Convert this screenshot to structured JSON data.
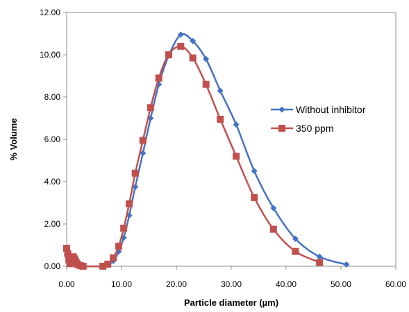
{
  "chart_data": {
    "type": "line",
    "title": "",
    "xlabel": "Particle diameter (µm)",
    "ylabel": "% Volume",
    "xlim": [
      0,
      60
    ],
    "ylim": [
      0,
      12
    ],
    "xticks": [
      "0.00",
      "10.00",
      "20.00",
      "30.00",
      "40.00",
      "50.00",
      "60.00"
    ],
    "yticks": [
      "0.00",
      "2.00",
      "4.00",
      "6.00",
      "8.00",
      "10.00",
      "12.00"
    ],
    "grid": false,
    "legend_position": "right",
    "series": [
      {
        "name": "Without inhibitor",
        "color": "#4472C4",
        "marker": "diamond",
        "x": [
          0.0,
          0.2,
          0.4,
          0.6,
          0.8,
          1.0,
          1.2,
          1.4,
          1.6,
          1.8,
          2.0,
          2.5,
          3.0,
          6.6,
          7.5,
          8.5,
          9.5,
          10.4,
          11.4,
          12.5,
          13.9,
          15.3,
          16.8,
          18.6,
          20.8,
          23.0,
          25.4,
          28.0,
          30.9,
          34.2,
          37.7,
          41.7,
          46.1,
          51.0
        ],
        "y": [
          0.55,
          0.4,
          0.2,
          0.1,
          0.15,
          0.35,
          0.4,
          0.3,
          0.2,
          0.1,
          0.05,
          0.02,
          0.0,
          0.0,
          0.05,
          0.25,
          0.7,
          1.35,
          2.4,
          3.75,
          5.35,
          7.0,
          8.6,
          9.95,
          10.95,
          10.65,
          9.8,
          8.3,
          6.7,
          4.5,
          2.75,
          1.3,
          0.45,
          0.08
        ]
      },
      {
        "name": "350 ppm",
        "color": "#C0504D",
        "marker": "square",
        "x": [
          0.0,
          0.2,
          0.4,
          0.6,
          0.8,
          1.0,
          1.2,
          1.4,
          1.6,
          1.8,
          2.0,
          2.5,
          3.0,
          6.6,
          7.5,
          8.5,
          9.5,
          10.4,
          11.4,
          12.5,
          13.9,
          15.3,
          16.8,
          18.6,
          20.8,
          23.0,
          25.4,
          28.0,
          30.9,
          34.2,
          37.7,
          41.7,
          46.1
        ],
        "y": [
          0.85,
          0.6,
          0.3,
          0.12,
          0.2,
          0.4,
          0.45,
          0.35,
          0.25,
          0.15,
          0.08,
          0.03,
          0.0,
          0.0,
          0.1,
          0.4,
          0.95,
          1.8,
          2.95,
          4.4,
          5.95,
          7.5,
          8.9,
          10.0,
          10.4,
          9.85,
          8.6,
          6.95,
          5.2,
          3.25,
          1.75,
          0.7,
          0.18
        ]
      }
    ]
  }
}
